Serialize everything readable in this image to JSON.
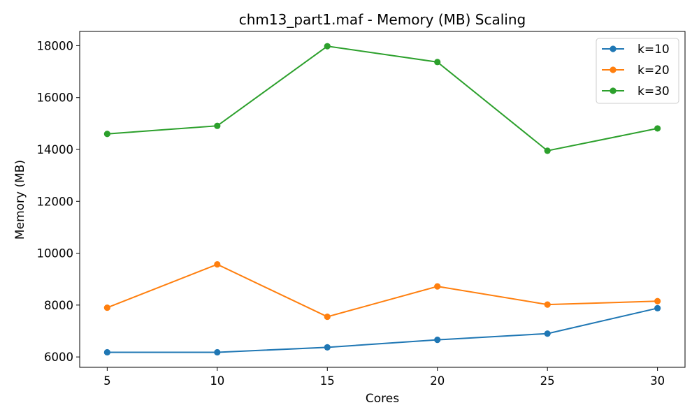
{
  "chart_data": {
    "type": "line",
    "title": "chm13_part1.maf - Memory (MB) Scaling",
    "xlabel": "Cores",
    "ylabel": "Memory (MB)",
    "x": [
      5,
      10,
      15,
      20,
      25,
      30
    ],
    "x_ticks": [
      "5",
      "10",
      "15",
      "20",
      "25",
      "30"
    ],
    "y_ticks": [
      "6000",
      "8000",
      "10000",
      "12000",
      "14000",
      "16000",
      "18000"
    ],
    "xlim": [
      3.75,
      31.25
    ],
    "ylim": [
      5600,
      18550
    ],
    "grid": false,
    "legend_position": "top-right",
    "series": [
      {
        "name": "k=10",
        "color": "#1f77b4",
        "values": [
          6180,
          6180,
          6370,
          6660,
          6900,
          7880
        ]
      },
      {
        "name": "k=20",
        "color": "#ff7f0e",
        "values": [
          7900,
          9570,
          7550,
          8720,
          8020,
          8150
        ]
      },
      {
        "name": "k=30",
        "color": "#2ca02c",
        "values": [
          14600,
          14910,
          17980,
          17370,
          13950,
          14810
        ]
      }
    ]
  }
}
